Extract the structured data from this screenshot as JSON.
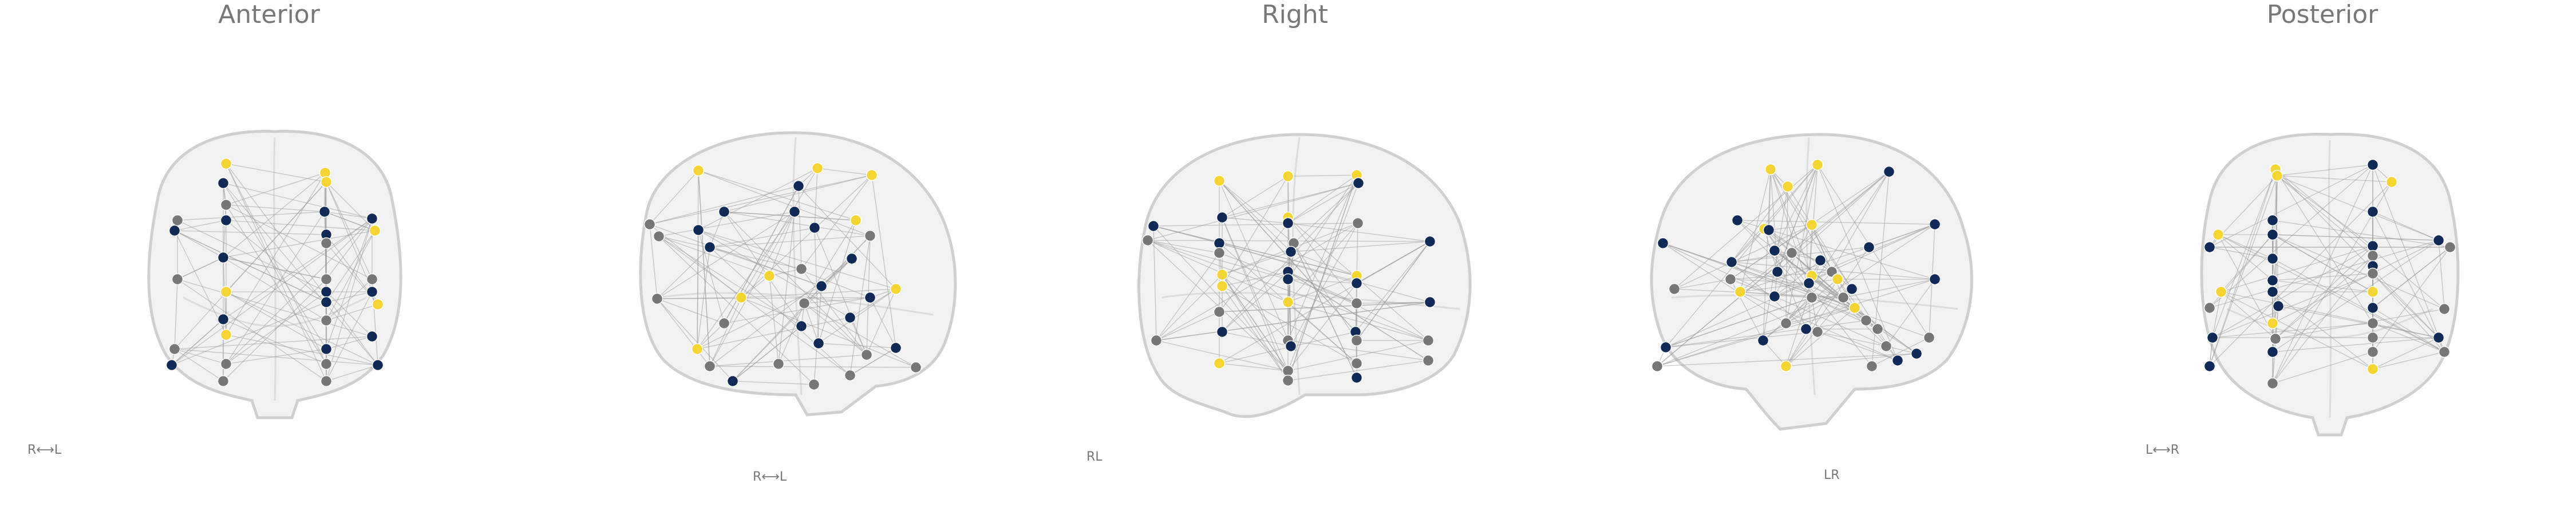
{
  "titles": [
    "Anterior",
    "Right",
    "Posterior"
  ],
  "orientation_labels": [
    "R⟷L",
    "R⟷L",
    "RL",
    "LR",
    "L⟷R"
  ],
  "colors": {
    "yellow": "#f5d533",
    "navy": "#0f2a56",
    "gray": "#777777"
  },
  "views": [
    {
      "name": "anterior-view"
    },
    {
      "name": "right-oblique-view"
    },
    {
      "name": "right-lateral-view"
    },
    {
      "name": "left-oblique-view"
    },
    {
      "name": "posterior-view"
    }
  ]
}
